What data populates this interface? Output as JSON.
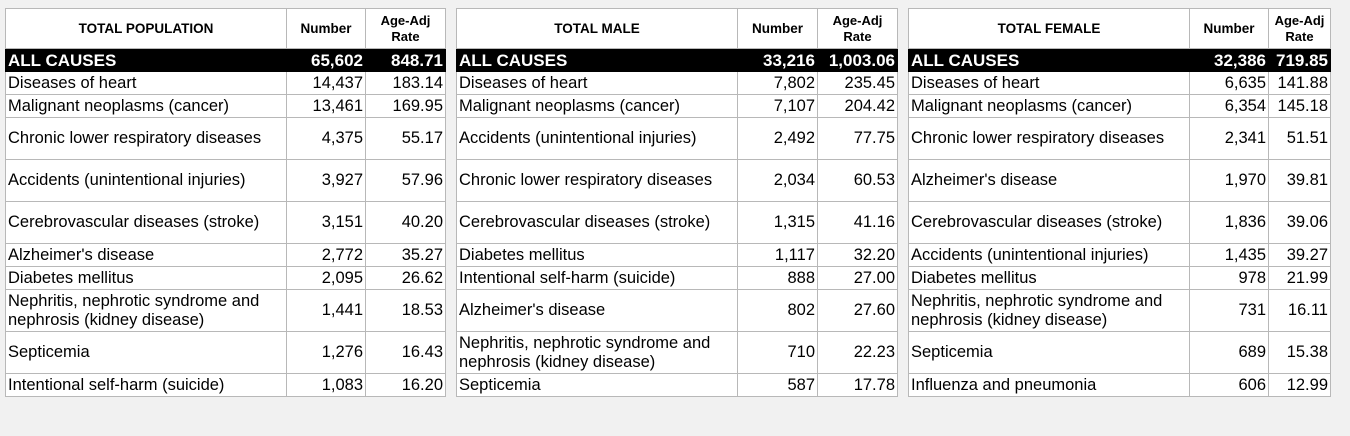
{
  "headers": {
    "number": "Number",
    "rate": "Age-Adj Rate"
  },
  "tables": [
    {
      "title": "TOTAL POPULATION",
      "all": {
        "label": "ALL CAUSES",
        "number": "65,602",
        "rate": "848.71"
      },
      "rows": [
        {
          "cause": "Diseases of heart",
          "number": "14,437",
          "rate": "183.14"
        },
        {
          "cause": "Malignant neoplasms (cancer)",
          "number": "13,461",
          "rate": "169.95"
        },
        {
          "cause": "Chronic lower respiratory diseases",
          "number": "4,375",
          "rate": "55.17"
        },
        {
          "cause": "Accidents (unintentional injuries)",
          "number": "3,927",
          "rate": "57.96"
        },
        {
          "cause": "Cerebrovascular diseases (stroke)",
          "number": "3,151",
          "rate": "40.20"
        },
        {
          "cause": "Alzheimer's disease",
          "number": "2,772",
          "rate": "35.27"
        },
        {
          "cause": "Diabetes mellitus",
          "number": "2,095",
          "rate": "26.62"
        },
        {
          "cause": "Nephritis, nephrotic syndrome and nephrosis (kidney disease)",
          "number": "1,441",
          "rate": "18.53"
        },
        {
          "cause": "Septicemia",
          "number": "1,276",
          "rate": "16.43"
        },
        {
          "cause": "Intentional self-harm (suicide)",
          "number": "1,083",
          "rate": "16.20"
        }
      ]
    },
    {
      "title": "TOTAL MALE",
      "all": {
        "label": "ALL CAUSES",
        "number": "33,216",
        "rate": "1,003.06"
      },
      "rows": [
        {
          "cause": "Diseases of heart",
          "number": "7,802",
          "rate": "235.45"
        },
        {
          "cause": "Malignant neoplasms (cancer)",
          "number": "7,107",
          "rate": "204.42"
        },
        {
          "cause": "Accidents (unintentional injuries)",
          "number": "2,492",
          "rate": "77.75"
        },
        {
          "cause": "Chronic lower respiratory diseases",
          "number": "2,034",
          "rate": "60.53"
        },
        {
          "cause": "Cerebrovascular diseases (stroke)",
          "number": "1,315",
          "rate": "41.16"
        },
        {
          "cause": "Diabetes mellitus",
          "number": "1,117",
          "rate": "32.20"
        },
        {
          "cause": "Intentional self-harm (suicide)",
          "number": "888",
          "rate": "27.00"
        },
        {
          "cause": "Alzheimer's disease",
          "number": "802",
          "rate": "27.60"
        },
        {
          "cause": "Nephritis, nephrotic syndrome and nephrosis (kidney disease)",
          "number": "710",
          "rate": "22.23"
        },
        {
          "cause": "Septicemia",
          "number": "587",
          "rate": "17.78"
        }
      ]
    },
    {
      "title": "TOTAL FEMALE",
      "all": {
        "label": "ALL CAUSES",
        "number": "32,386",
        "rate": "719.85"
      },
      "rows": [
        {
          "cause": "Diseases of heart",
          "number": "6,635",
          "rate": "141.88"
        },
        {
          "cause": "Malignant neoplasms (cancer)",
          "number": "6,354",
          "rate": "145.18"
        },
        {
          "cause": "Chronic lower respiratory diseases",
          "number": "2,341",
          "rate": "51.51"
        },
        {
          "cause": "Alzheimer's disease",
          "number": "1,970",
          "rate": "39.81"
        },
        {
          "cause": "Cerebrovascular diseases (stroke)",
          "number": "1,836",
          "rate": "39.06"
        },
        {
          "cause": "Accidents (unintentional injuries)",
          "number": "1,435",
          "rate": "39.27"
        },
        {
          "cause": "Diabetes mellitus",
          "number": "978",
          "rate": "21.99"
        },
        {
          "cause": "Nephritis, nephrotic syndrome and nephrosis (kidney disease)",
          "number": "731",
          "rate": "16.11"
        },
        {
          "cause": "Septicemia",
          "number": "689",
          "rate": "15.38"
        },
        {
          "cause": "Influenza and pneumonia",
          "number": "606",
          "rate": "12.99"
        }
      ]
    }
  ]
}
